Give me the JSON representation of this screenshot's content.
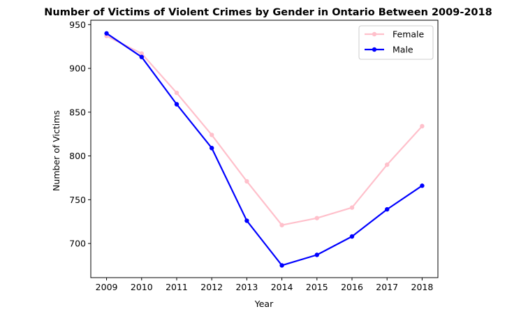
{
  "chart_data": {
    "type": "line",
    "title": "Number of Victims of Violent Crimes by Gender in Ontario Between 2009-2018",
    "xlabel": "Year",
    "ylabel": "Number of Victims",
    "x": [
      2009,
      2010,
      2011,
      2012,
      2013,
      2014,
      2015,
      2016,
      2017,
      2018
    ],
    "ylim": [
      661,
      955
    ],
    "yticks": [
      700,
      750,
      800,
      850,
      900,
      950
    ],
    "grid": false,
    "legend_position": "top-right",
    "series": [
      {
        "name": "Female",
        "color": "#ffc0cb",
        "marker": "circle",
        "values": [
          937,
          917,
          872,
          824,
          771,
          721,
          729,
          741,
          790,
          834
        ]
      },
      {
        "name": "Male",
        "color": "#0000ff",
        "marker": "circle",
        "values": [
          940,
          913,
          859,
          809,
          726,
          675,
          687,
          708,
          739,
          766
        ]
      }
    ]
  }
}
